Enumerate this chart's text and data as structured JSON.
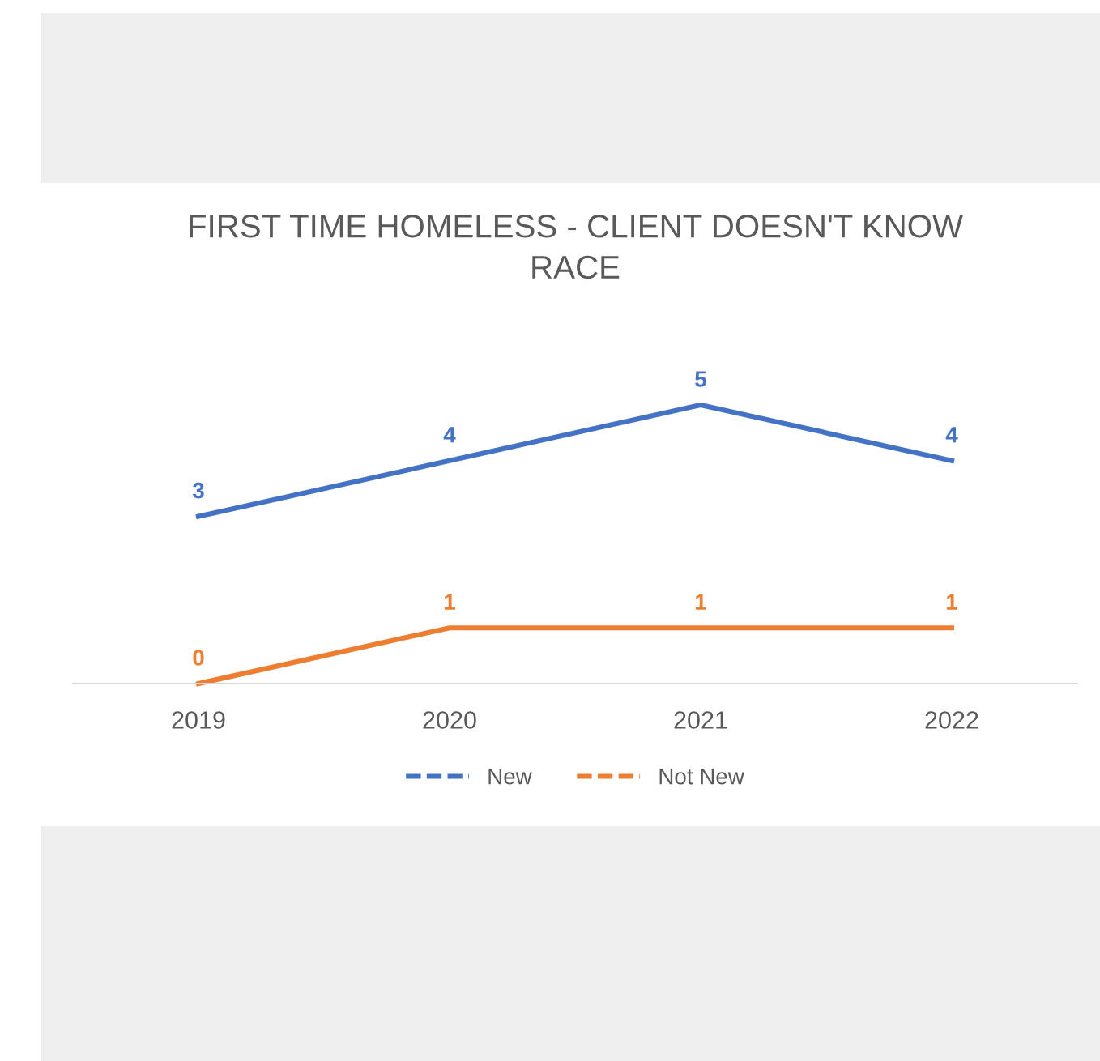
{
  "chart_data": {
    "type": "line",
    "title": "FIRST TIME HOMELESS - CLIENT DOESN'T KNOW RACE",
    "categories": [
      "2019",
      "2020",
      "2021",
      "2022"
    ],
    "series": [
      {
        "name": "New",
        "color": "#4472c4",
        "values": [
          3,
          4,
          5,
          4
        ]
      },
      {
        "name": "Not New",
        "color": "#ed7d31",
        "values": [
          0,
          1,
          1,
          1
        ]
      }
    ],
    "data_labels": true,
    "legend": "bottom",
    "grid": false,
    "line_style": "solid",
    "tick_labels": "x"
  }
}
